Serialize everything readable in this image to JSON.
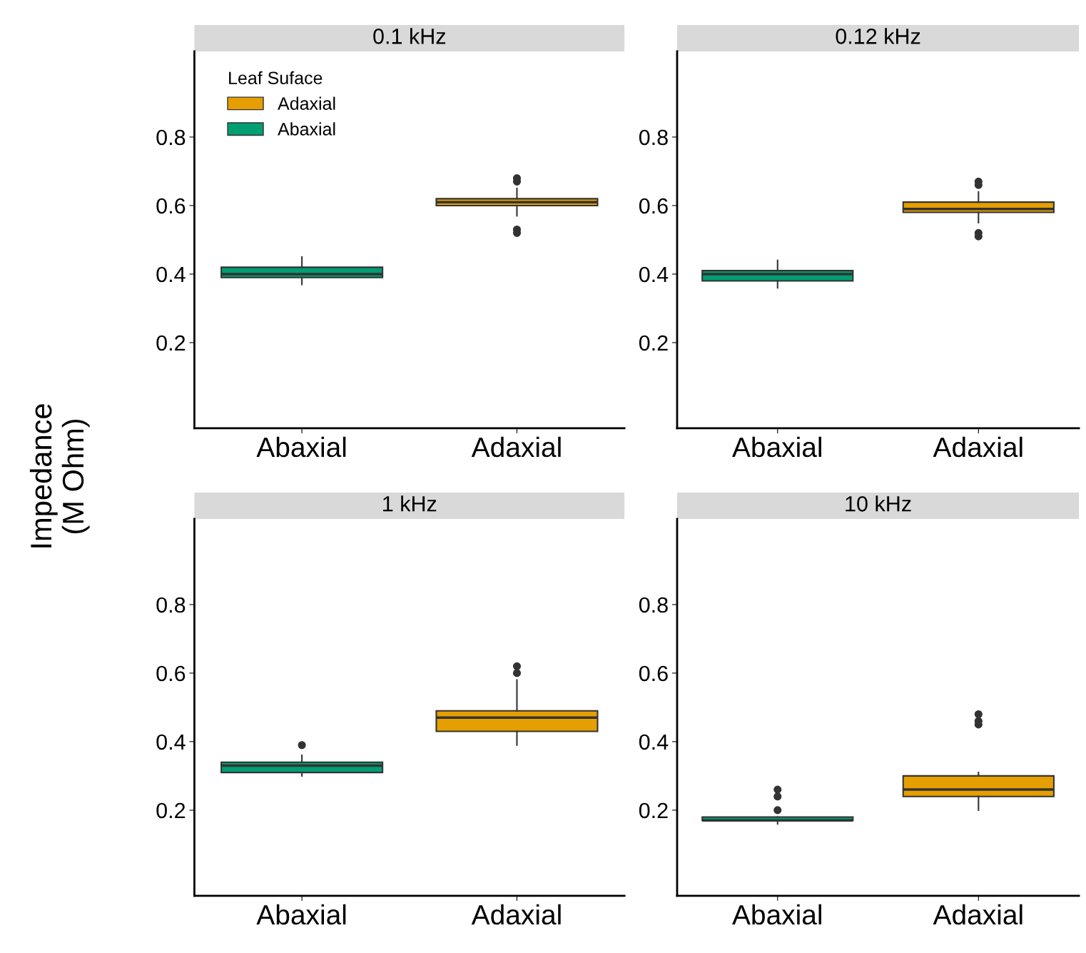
{
  "chart_data": [
    {
      "type": "box",
      "title": "0.1 kHz",
      "ylabel": "Impedance\n(M Ohm)",
      "categories": [
        "Abaxial",
        "Adaxial"
      ],
      "ylim": [
        -0.05,
        1.05
      ],
      "yticks": [
        0.2,
        0.4,
        0.6,
        0.8
      ],
      "legend": "top left",
      "legend_title": "Leaf Suface",
      "series": [
        {
          "name": "Adaxial",
          "color": "#e69f00",
          "boxes": [
            null,
            {
              "low": 0.57,
              "q1": 0.6,
              "median": 0.61,
              "q3": 0.62,
              "high": 0.65,
              "outliers": [
                0.68,
                0.67,
                0.53,
                0.52
              ]
            }
          ]
        },
        {
          "name": "Abaxial",
          "color": "#009e73",
          "boxes": [
            {
              "low": 0.37,
              "q1": 0.39,
              "median": 0.4,
              "q3": 0.42,
              "high": 0.45
            },
            null
          ]
        }
      ]
    },
    {
      "type": "box",
      "title": "0.12 kHz",
      "categories": [
        "Abaxial",
        "Adaxial"
      ],
      "ylim": [
        -0.05,
        1.05
      ],
      "yticks": [
        0.2,
        0.4,
        0.6,
        0.8
      ],
      "series": [
        {
          "color": "#e69f00",
          "boxes": [
            null,
            {
              "low": 0.55,
              "q1": 0.58,
              "median": 0.59,
              "q3": 0.61,
              "high": 0.64,
              "outliers": [
                0.67,
                0.66,
                0.52,
                0.51
              ]
            }
          ]
        },
        {
          "color": "#009e73",
          "boxes": [
            {
              "low": 0.36,
              "q1": 0.38,
              "median": 0.4,
              "q3": 0.41,
              "high": 0.44
            },
            null
          ]
        }
      ]
    },
    {
      "type": "box",
      "title": "1 kHz",
      "categories": [
        "Abaxial",
        "Adaxial"
      ],
      "ylim": [
        -0.05,
        1.05
      ],
      "yticks": [
        0.2,
        0.4,
        0.6,
        0.8
      ],
      "series": [
        {
          "color": "#e69f00",
          "boxes": [
            null,
            {
              "low": 0.39,
              "q1": 0.43,
              "median": 0.47,
              "q3": 0.49,
              "high": 0.58,
              "outliers": [
                0.62,
                0.6
              ]
            }
          ]
        },
        {
          "color": "#009e73",
          "boxes": [
            {
              "low": 0.3,
              "q1": 0.31,
              "median": 0.33,
              "q3": 0.34,
              "high": 0.36,
              "outliers": [
                0.39
              ]
            },
            null
          ]
        }
      ]
    },
    {
      "type": "box",
      "title": "10 kHz",
      "categories": [
        "Abaxial",
        "Adaxial"
      ],
      "ylim": [
        -0.05,
        1.05
      ],
      "yticks": [
        0.2,
        0.4,
        0.6,
        0.8
      ],
      "series": [
        {
          "color": "#e69f00",
          "boxes": [
            null,
            {
              "low": 0.2,
              "q1": 0.24,
              "median": 0.26,
              "q3": 0.3,
              "high": 0.31,
              "outliers": [
                0.48,
                0.46,
                0.45
              ]
            }
          ]
        },
        {
          "color": "#009e73",
          "boxes": [
            {
              "low": 0.16,
              "q1": 0.17,
              "median": 0.17,
              "q3": 0.18,
              "high": 0.18,
              "outliers": [
                0.26,
                0.24,
                0.2
              ]
            },
            null
          ]
        }
      ]
    }
  ]
}
